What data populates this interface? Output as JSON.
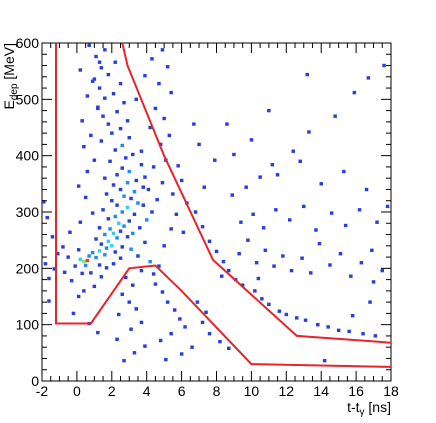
{
  "chart_data": {
    "type": "heatmap",
    "xlabel": "t-t",
    "xlabel_sub": "γ",
    "xlabel_unit": " [ns]",
    "ylabel": "E",
    "ylabel_sub": "dep",
    "ylabel_unit": " [MeV]",
    "xlim": [
      -2,
      18
    ],
    "ylim": [
      0,
      600
    ],
    "x_ticks": [
      -2,
      0,
      2,
      4,
      6,
      8,
      10,
      12,
      14,
      16,
      18
    ],
    "y_ticks": [
      0,
      100,
      200,
      300,
      400,
      500,
      600
    ],
    "bin_width_x": 0.2,
    "bin_width_y": 6,
    "palette": [
      "#2a3fd8",
      "#1f8cf0",
      "#35d0e8",
      "#8ee06a",
      "#f2c83a",
      "#e8402a"
    ],
    "grid": false,
    "legend": "none",
    "bins": [
      [
        0.1,
        150,
        1
      ],
      [
        -0.3,
        178,
        1
      ],
      [
        1.0,
        168,
        1
      ],
      [
        1.4,
        185,
        1
      ],
      [
        0.3,
        191,
        1
      ],
      [
        -0.7,
        193,
        1
      ],
      [
        -1.3,
        199,
        1
      ],
      [
        0.8,
        192,
        1
      ],
      [
        1.7,
        201,
        1
      ],
      [
        0.5,
        205,
        2
      ],
      [
        -0.1,
        204,
        1
      ],
      [
        1.3,
        206,
        1
      ],
      [
        2.1,
        208,
        1
      ],
      [
        0.4,
        212,
        4
      ],
      [
        0.6,
        214,
        6
      ],
      [
        0.2,
        216,
        3
      ],
      [
        -0.5,
        220,
        1
      ],
      [
        1.1,
        219,
        2
      ],
      [
        0.7,
        222,
        2
      ],
      [
        2.5,
        218,
        1
      ],
      [
        1.6,
        224,
        2
      ],
      [
        0.9,
        228,
        2
      ],
      [
        1.3,
        231,
        3
      ],
      [
        0.1,
        233,
        1
      ],
      [
        2.2,
        229,
        1
      ],
      [
        1.7,
        236,
        2
      ],
      [
        2.0,
        240,
        3
      ],
      [
        1.4,
        243,
        1
      ],
      [
        2.6,
        238,
        1
      ],
      [
        1.8,
        248,
        3
      ],
      [
        1.1,
        252,
        1
      ],
      [
        2.3,
        254,
        2
      ],
      [
        2.9,
        256,
        1
      ],
      [
        1.6,
        260,
        2
      ],
      [
        2.1,
        262,
        3
      ],
      [
        2.5,
        266,
        1
      ],
      [
        1.9,
        270,
        2
      ],
      [
        1.3,
        272,
        1
      ],
      [
        2.7,
        275,
        2
      ],
      [
        2.4,
        280,
        3
      ],
      [
        3.0,
        284,
        1
      ],
      [
        1.8,
        288,
        1
      ],
      [
        2.2,
        292,
        2
      ],
      [
        3.3,
        296,
        1
      ],
      [
        2.6,
        300,
        2
      ],
      [
        1.5,
        304,
        1
      ],
      [
        2.9,
        308,
        3
      ],
      [
        2.3,
        312,
        1
      ],
      [
        3.5,
        316,
        2
      ],
      [
        2.0,
        320,
        1
      ],
      [
        3.1,
        324,
        1
      ],
      [
        2.7,
        328,
        2
      ],
      [
        1.7,
        332,
        1
      ],
      [
        3.3,
        336,
        2
      ],
      [
        2.5,
        340,
        1
      ],
      [
        3.8,
        344,
        1
      ],
      [
        2.1,
        348,
        1
      ],
      [
        2.9,
        352,
        2
      ],
      [
        3.4,
        356,
        1
      ],
      [
        1.6,
        360,
        1
      ],
      [
        2.3,
        366,
        1
      ],
      [
        3.0,
        372,
        2
      ],
      [
        2.6,
        378,
        1
      ],
      [
        3.7,
        384,
        1
      ],
      [
        1.9,
        390,
        1
      ],
      [
        2.8,
        396,
        1
      ],
      [
        3.2,
        402,
        1
      ],
      [
        2.2,
        410,
        1
      ],
      [
        2.6,
        418,
        2
      ],
      [
        1.4,
        426,
        1
      ],
      [
        3.0,
        432,
        1
      ],
      [
        2.0,
        440,
        1
      ],
      [
        2.5,
        448,
        1
      ],
      [
        1.8,
        456,
        1
      ],
      [
        2.9,
        462,
        1
      ],
      [
        1.5,
        470,
        1
      ],
      [
        2.3,
        478,
        1
      ],
      [
        1.2,
        486,
        1
      ],
      [
        2.7,
        494,
        1
      ],
      [
        1.6,
        502,
        1
      ],
      [
        2.1,
        510,
        1
      ],
      [
        1.3,
        520,
        1
      ],
      [
        2.5,
        528,
        1
      ],
      [
        1.0,
        536,
        1
      ],
      [
        1.8,
        544,
        1
      ],
      [
        1.4,
        556,
        1
      ],
      [
        2.2,
        566,
        1
      ],
      [
        1.1,
        576,
        1
      ],
      [
        1.6,
        588,
        1
      ],
      [
        0.7,
        596,
        1
      ],
      [
        0.2,
        282,
        1
      ],
      [
        -0.4,
        264,
        1
      ],
      [
        -0.8,
        238,
        1
      ],
      [
        -1.1,
        226,
        1
      ],
      [
        0.9,
        298,
        1
      ],
      [
        0.5,
        326,
        1
      ],
      [
        0.1,
        346,
        1
      ],
      [
        0.6,
        372,
        1
      ],
      [
        1.0,
        392,
        1
      ],
      [
        0.4,
        416,
        1
      ],
      [
        0.8,
        436,
        1
      ],
      [
        0.3,
        462,
        1
      ],
      [
        1.2,
        484,
        1
      ],
      [
        0.6,
        506,
        1
      ],
      [
        0.9,
        532,
        1
      ],
      [
        0.2,
        552,
        1
      ],
      [
        1.3,
        566,
        1
      ],
      [
        -1.6,
        182,
        1
      ],
      [
        -1.8,
        208,
        1
      ],
      [
        -1.4,
        256,
        1
      ],
      [
        -1.7,
        290,
        1
      ],
      [
        -1.9,
        318,
        1
      ],
      [
        -1.6,
        142,
        1
      ],
      [
        -0.2,
        120,
        1
      ],
      [
        0.7,
        102,
        1
      ],
      [
        1.2,
        86,
        1
      ],
      [
        0.4,
        160,
        1
      ],
      [
        3.2,
        262,
        2
      ],
      [
        3.6,
        272,
        1
      ],
      [
        4.0,
        286,
        2
      ],
      [
        4.3,
        300,
        1
      ],
      [
        3.8,
        312,
        1
      ],
      [
        4.6,
        322,
        1
      ],
      [
        4.1,
        340,
        1
      ],
      [
        4.9,
        352,
        1
      ],
      [
        3.9,
        362,
        1
      ],
      [
        4.4,
        380,
        1
      ],
      [
        5.1,
        392,
        1
      ],
      [
        3.7,
        408,
        1
      ],
      [
        4.8,
        420,
        1
      ],
      [
        5.3,
        436,
        1
      ],
      [
        4.2,
        450,
        1
      ],
      [
        5.0,
        466,
        1
      ],
      [
        4.5,
        484,
        1
      ],
      [
        3.4,
        500,
        1
      ],
      [
        5.4,
        512,
        1
      ],
      [
        4.7,
        528,
        1
      ],
      [
        3.9,
        542,
        1
      ],
      [
        5.2,
        558,
        1
      ],
      [
        4.3,
        572,
        1
      ],
      [
        4.9,
        588,
        1
      ],
      [
        3.1,
        234,
        2
      ],
      [
        3.5,
        222,
        1
      ],
      [
        3.9,
        246,
        1
      ],
      [
        4.2,
        212,
        2
      ],
      [
        4.7,
        204,
        1
      ],
      [
        4.4,
        190,
        1
      ],
      [
        3.7,
        196,
        1
      ],
      [
        5.0,
        240,
        1
      ],
      [
        5.4,
        270,
        1
      ],
      [
        5.7,
        296,
        1
      ],
      [
        5.5,
        332,
        1
      ],
      [
        6.0,
        356,
        1
      ],
      [
        5.8,
        382,
        1
      ],
      [
        6.3,
        316,
        1
      ],
      [
        6.1,
        264,
        1
      ],
      [
        2.8,
        184,
        1
      ],
      [
        3.2,
        170,
        1
      ],
      [
        2.6,
        154,
        1
      ],
      [
        3.0,
        140,
        1
      ],
      [
        3.4,
        128,
        1
      ],
      [
        2.4,
        118,
        1
      ],
      [
        3.7,
        104,
        1
      ],
      [
        3.1,
        92,
        1
      ],
      [
        2.3,
        74,
        1
      ],
      [
        3.9,
        62,
        1
      ],
      [
        3.3,
        50,
        1
      ],
      [
        2.7,
        36,
        1
      ],
      [
        4.5,
        172,
        1
      ],
      [
        4.9,
        158,
        1
      ],
      [
        5.2,
        140,
        1
      ],
      [
        5.6,
        126,
        1
      ],
      [
        5.9,
        110,
        1
      ],
      [
        6.2,
        96,
        1
      ],
      [
        5.4,
        84,
        1
      ],
      [
        4.8,
        72,
        1
      ],
      [
        6.6,
        60,
        1
      ],
      [
        6.0,
        48,
        1
      ],
      [
        5.1,
        38,
        1
      ],
      [
        7.2,
        104,
        1
      ],
      [
        7.6,
        84,
        1
      ],
      [
        8.2,
        70,
        1
      ],
      [
        8.7,
        58,
        1
      ],
      [
        6.9,
        140,
        1
      ],
      [
        7.4,
        122,
        1
      ],
      [
        6.8,
        300,
        1
      ],
      [
        7.2,
        274,
        1
      ],
      [
        7.6,
        248,
        1
      ],
      [
        8.0,
        230,
        1
      ],
      [
        8.4,
        212,
        1
      ],
      [
        8.7,
        196,
        1
      ],
      [
        9.1,
        180,
        1
      ],
      [
        8.3,
        186,
        1
      ],
      [
        9.5,
        170,
        1
      ],
      [
        10.2,
        160,
        1
      ],
      [
        10.6,
        146,
        1
      ],
      [
        11.0,
        136,
        1
      ],
      [
        11.6,
        124,
        1
      ],
      [
        12.0,
        118,
        1
      ],
      [
        12.6,
        112,
        1
      ],
      [
        13.1,
        108,
        1
      ],
      [
        13.8,
        100,
        1
      ],
      [
        14.4,
        96,
        1
      ],
      [
        15.0,
        90,
        1
      ],
      [
        15.6,
        88,
        1
      ],
      [
        16.4,
        84,
        1
      ],
      [
        17.1,
        80,
        1
      ],
      [
        9.3,
        226,
        1
      ],
      [
        9.8,
        250,
        1
      ],
      [
        10.3,
        210,
        1
      ],
      [
        10.8,
        232,
        1
      ],
      [
        11.3,
        204,
        1
      ],
      [
        11.8,
        222,
        1
      ],
      [
        12.3,
        196,
        1
      ],
      [
        12.9,
        218,
        1
      ],
      [
        13.4,
        192,
        1
      ],
      [
        13.9,
        244,
        1
      ],
      [
        14.5,
        206,
        1
      ],
      [
        15.1,
        226,
        1
      ],
      [
        15.7,
        186,
        1
      ],
      [
        16.3,
        210,
        1
      ],
      [
        16.9,
        232,
        1
      ],
      [
        17.5,
        196,
        1
      ],
      [
        9.4,
        282,
        1
      ],
      [
        10.1,
        296,
        1
      ],
      [
        10.7,
        272,
        1
      ],
      [
        11.4,
        304,
        1
      ],
      [
        12.2,
        286,
        1
      ],
      [
        13.0,
        310,
        1
      ],
      [
        13.7,
        268,
        1
      ],
      [
        14.6,
        298,
        1
      ],
      [
        15.4,
        276,
        1
      ],
      [
        16.2,
        304,
        1
      ],
      [
        17.2,
        282,
        1
      ],
      [
        8.9,
        330,
        1
      ],
      [
        9.7,
        344,
        1
      ],
      [
        10.5,
        362,
        1
      ],
      [
        11.2,
        384,
        1
      ],
      [
        12.4,
        408,
        1
      ],
      [
        13.3,
        442,
        1
      ],
      [
        14.8,
        470,
        1
      ],
      [
        15.9,
        512,
        1
      ],
      [
        16.7,
        538,
        1
      ],
      [
        17.6,
        560,
        1
      ],
      [
        9.0,
        402,
        1
      ],
      [
        10.0,
        428,
        1
      ],
      [
        11.5,
        366,
        1
      ],
      [
        12.8,
        390,
        1
      ],
      [
        14.0,
        350,
        1
      ],
      [
        15.3,
        372,
        1
      ],
      [
        16.6,
        340,
        1
      ],
      [
        17.8,
        310,
        1
      ],
      [
        13.2,
        544,
        1
      ],
      [
        11.0,
        480,
        1
      ],
      [
        8.6,
        456,
        1
      ],
      [
        7.9,
        392,
        1
      ],
      [
        7.0,
        420,
        1
      ],
      [
        6.7,
        456,
        1
      ],
      [
        7.3,
        344,
        1
      ],
      [
        14.2,
        36,
        1
      ],
      [
        17.0,
        176,
        1
      ],
      [
        16.8,
        140,
        1
      ],
      [
        15.8,
        116,
        1
      ],
      [
        10.4,
        182,
        1
      ]
    ],
    "cut_line_1": [
      [
        -1.2,
        600
      ],
      [
        -1.2,
        102
      ],
      [
        0.8,
        102
      ],
      [
        3.0,
        200
      ],
      [
        4.5,
        205
      ],
      [
        6.0,
        160
      ],
      [
        10.0,
        30
      ],
      [
        18.0,
        25
      ]
    ],
    "cut_line_2": [
      [
        2.6,
        600
      ],
      [
        2.9,
        560
      ],
      [
        5.0,
        400
      ],
      [
        7.8,
        215
      ],
      [
        12.6,
        80
      ],
      [
        18.0,
        68
      ]
    ],
    "cut_color": "#e8232a"
  }
}
